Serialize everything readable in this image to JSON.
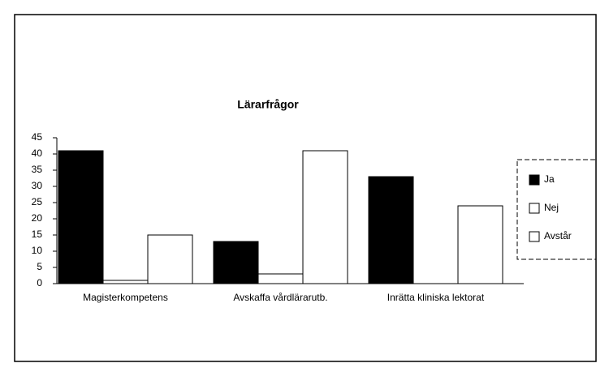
{
  "chart_data": {
    "type": "bar",
    "title": "Lärarfrågor",
    "categories": [
      "Magisterkompetens",
      "Avskaffa vårdlärarutb.",
      "Inrätta kliniska lektorat"
    ],
    "series": [
      {
        "name": "Ja",
        "color": "#000000",
        "values": [
          41,
          13,
          33
        ]
      },
      {
        "name": "Nej",
        "color": "#ffffff",
        "values": [
          1,
          3,
          0
        ]
      },
      {
        "name": "Avstår",
        "color": "#ffffff",
        "values": [
          15,
          41,
          24
        ]
      }
    ],
    "ylim": [
      0,
      45
    ],
    "yticks": [
      0,
      5,
      10,
      15,
      20,
      25,
      30,
      35,
      40,
      45
    ],
    "grid": false,
    "legend": "right"
  }
}
